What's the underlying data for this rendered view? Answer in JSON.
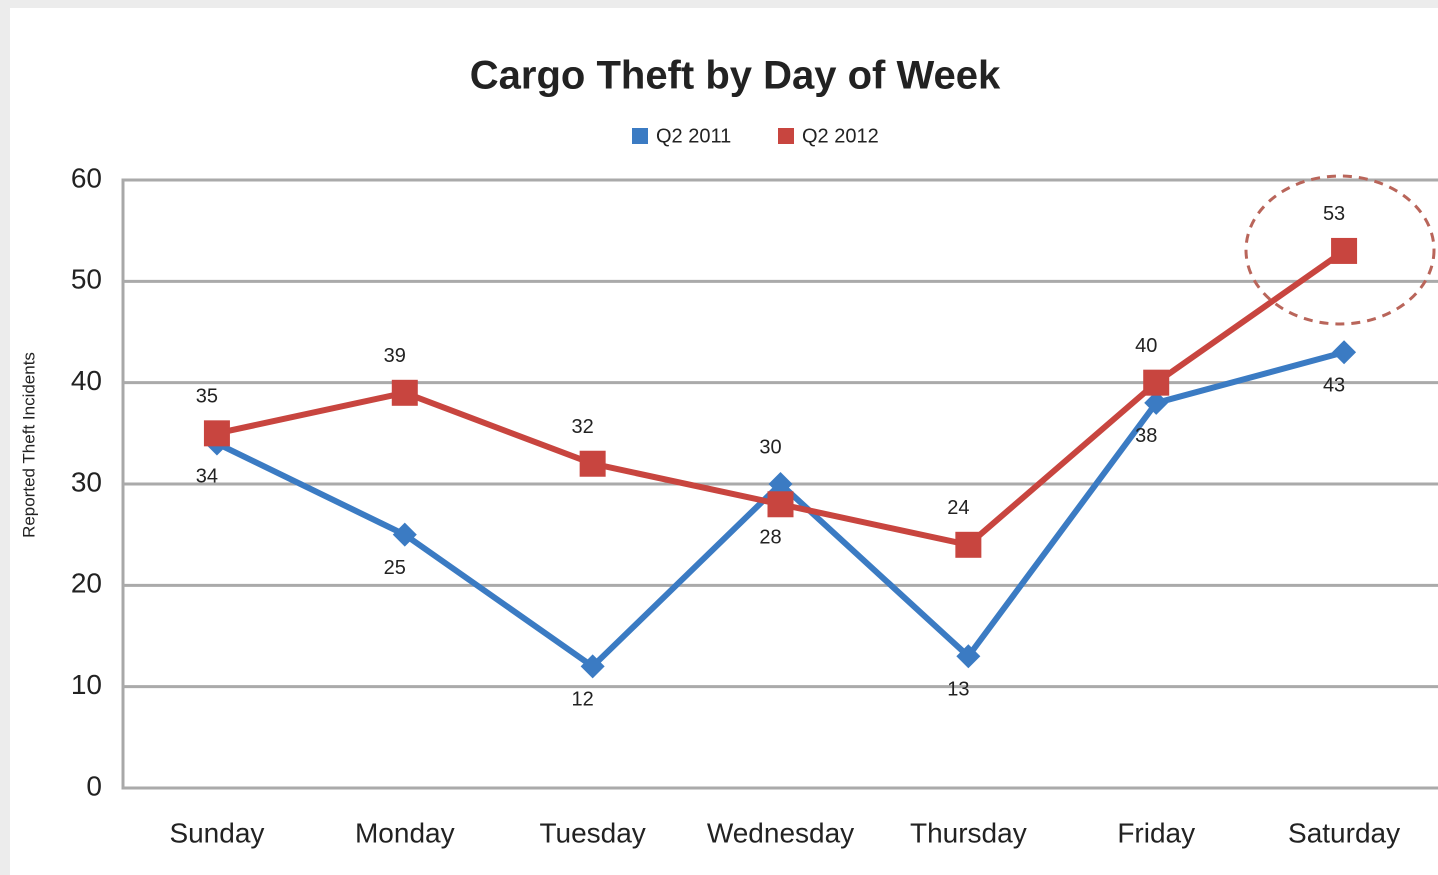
{
  "chart_data": {
    "type": "line",
    "title": "Cargo Theft by Day of Week",
    "y_label": "Reported Theft Incidents",
    "categories": [
      "Sunday",
      "Monday",
      "Tuesday",
      "Wednesday",
      "Thursday",
      "Friday",
      "Saturday"
    ],
    "series": [
      {
        "name": "Q2 2011",
        "color": "#3b7bc3",
        "marker": "diamond",
        "values": [
          34,
          25,
          12,
          30,
          13,
          38,
          43
        ]
      },
      {
        "name": "Q2 2012",
        "color": "#c8453f",
        "marker": "square",
        "values": [
          35,
          39,
          32,
          28,
          24,
          40,
          53
        ]
      }
    ],
    "ylim": [
      0,
      60
    ],
    "yticks": [
      0,
      10,
      20,
      30,
      40,
      50,
      60
    ],
    "grid": true,
    "legend": "top"
  }
}
